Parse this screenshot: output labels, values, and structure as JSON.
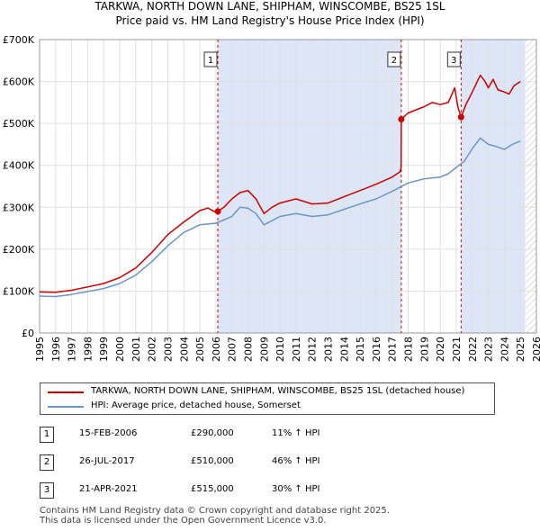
{
  "chart_data": {
    "type": "line",
    "title": "TARKWA, NORTH DOWN LANE, SHIPHAM, WINSCOMBE, BS25 1SL",
    "subtitle": "Price paid vs. HM Land Registry's House Price Index (HPI)",
    "xlim": [
      1995,
      2026
    ],
    "ylim": [
      0,
      700000
    ],
    "y_ticks": [
      0,
      100000,
      200000,
      300000,
      400000,
      500000,
      600000,
      700000
    ],
    "y_tick_labels": [
      "£0",
      "£100K",
      "£200K",
      "£300K",
      "£400K",
      "£500K",
      "£600K",
      "£700K"
    ],
    "x_ticks": [
      1995,
      1996,
      1997,
      1998,
      1999,
      2000,
      2001,
      2002,
      2003,
      2004,
      2005,
      2006,
      2007,
      2008,
      2009,
      2010,
      2011,
      2012,
      2013,
      2014,
      2015,
      2016,
      2017,
      2018,
      2019,
      2020,
      2021,
      2022,
      2023,
      2024,
      2025,
      2026
    ],
    "x_tick_labels": [
      "1995",
      "1996",
      "1997",
      "1998",
      "1999",
      "2000",
      "2001",
      "2002",
      "2003",
      "2004",
      "2005",
      "2006",
      "2007",
      "2008",
      "2009",
      "2010",
      "2011",
      "2012",
      "2013",
      "2014",
      "2015",
      "2016",
      "2017",
      "2018",
      "2019",
      "2020",
      "2021",
      "2022",
      "2023",
      "2024",
      "2025",
      "2026"
    ],
    "shaded_periods": [
      [
        2006.12,
        2017.57
      ],
      [
        2021.3,
        2025.3
      ]
    ],
    "hatch_from": 2025.3,
    "series": [
      {
        "name": "TARKWA, NORTH DOWN LANE, SHIPHAM, WINSCOMBE, BS25 1SL (detached house)",
        "color": "#cc0000",
        "x": [
          1995.0,
          1996.0,
          1997.0,
          1998.0,
          1999.0,
          2000.0,
          2001.0,
          2002.0,
          2003.0,
          2004.0,
          2005.0,
          2005.5,
          2006.0,
          2006.12,
          2006.5,
          2007.0,
          2007.5,
          2008.0,
          2008.5,
          2009.0,
          2009.5,
          2010.0,
          2011.0,
          2012.0,
          2013.0,
          2014.0,
          2015.0,
          2016.0,
          2017.0,
          2017.5,
          2017.56,
          2017.57,
          2018.0,
          2019.0,
          2019.5,
          2020.0,
          2020.5,
          2020.9,
          2021.1,
          2021.3,
          2021.6,
          2022.0,
          2022.5,
          2022.8,
          2023.0,
          2023.3,
          2023.6,
          2024.0,
          2024.3,
          2024.6,
          2025.0
        ],
        "y": [
          98000,
          97000,
          102000,
          110000,
          118000,
          132000,
          155000,
          192000,
          235000,
          265000,
          292000,
          298000,
          288000,
          290000,
          300000,
          320000,
          335000,
          340000,
          320000,
          285000,
          300000,
          310000,
          320000,
          308000,
          310000,
          325000,
          340000,
          355000,
          372000,
          385000,
          395000,
          510000,
          525000,
          540000,
          550000,
          545000,
          550000,
          585000,
          540000,
          515000,
          545000,
          575000,
          615000,
          600000,
          585000,
          605000,
          580000,
          575000,
          570000,
          590000,
          600000
        ]
      },
      {
        "name": "HPI: Average price, detached house, Somerset",
        "color": "#6a96c8",
        "x": [
          1995.0,
          1996.0,
          1997.0,
          1998.0,
          1999.0,
          2000.0,
          2001.0,
          2002.0,
          2003.0,
          2004.0,
          2005.0,
          2006.0,
          2007.0,
          2007.5,
          2008.0,
          2008.5,
          2009.0,
          2009.5,
          2010.0,
          2011.0,
          2012.0,
          2013.0,
          2014.0,
          2015.0,
          2016.0,
          2017.0,
          2018.0,
          2019.0,
          2020.0,
          2020.5,
          2021.0,
          2021.5,
          2022.0,
          2022.5,
          2023.0,
          2023.5,
          2024.0,
          2024.5,
          2025.0
        ],
        "y": [
          88000,
          87000,
          92000,
          99000,
          106000,
          118000,
          138000,
          170000,
          208000,
          240000,
          258000,
          262000,
          278000,
          300000,
          298000,
          285000,
          258000,
          268000,
          278000,
          285000,
          278000,
          282000,
          295000,
          308000,
          320000,
          338000,
          358000,
          368000,
          372000,
          380000,
          395000,
          410000,
          440000,
          465000,
          450000,
          445000,
          438000,
          450000,
          458000
        ]
      }
    ],
    "transactions": [
      {
        "num": "1",
        "x": 2006.12,
        "price": 290000,
        "date": "15-FEB-2006",
        "price_label": "£290,000",
        "hpi_label": "11% ↑ HPI"
      },
      {
        "num": "2",
        "x": 2017.57,
        "price": 510000,
        "date": "26-JUL-2017",
        "price_label": "£510,000",
        "hpi_label": "46% ↑ HPI"
      },
      {
        "num": "3",
        "x": 2021.3,
        "price": 515000,
        "date": "21-APR-2021",
        "price_label": "£515,000",
        "hpi_label": "30% ↑ HPI"
      }
    ]
  },
  "footer": {
    "line1": "Contains HM Land Registry data © Crown copyright and database right 2025.",
    "line2": "This data is licensed under the Open Government Licence v3.0."
  }
}
